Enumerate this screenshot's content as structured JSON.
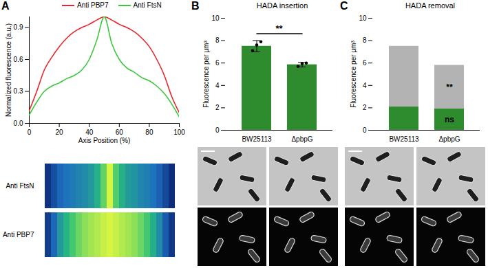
{
  "chart_data": [
    {
      "panel": "A",
      "type": "line",
      "x_label": "Axis Position (%)",
      "y_label": "Normalized fluorescence (a.u.)",
      "x": [
        0,
        5,
        10,
        15,
        20,
        25,
        30,
        35,
        40,
        45,
        50,
        55,
        60,
        65,
        70,
        75,
        80,
        85,
        90,
        95,
        100
      ],
      "series": [
        {
          "name": "Anti PBP7",
          "color": "#e8262b",
          "values": [
            0.12,
            0.3,
            0.5,
            0.62,
            0.72,
            0.8,
            0.86,
            0.9,
            0.93,
            0.97,
            1.0,
            0.97,
            0.93,
            0.9,
            0.86,
            0.8,
            0.72,
            0.6,
            0.45,
            0.25,
            0.1
          ]
        },
        {
          "name": "Anti FtsN",
          "color": "#3cc83c",
          "values": [
            0.08,
            0.2,
            0.3,
            0.35,
            0.38,
            0.42,
            0.45,
            0.5,
            0.6,
            0.78,
            1.0,
            0.75,
            0.6,
            0.52,
            0.48,
            0.43,
            0.4,
            0.35,
            0.28,
            0.18,
            0.06
          ]
        }
      ],
      "xlim": [
        0,
        100
      ],
      "xticks": [
        0,
        20,
        40,
        60,
        80,
        100
      ],
      "ylim": [
        0,
        1
      ],
      "yticks": [
        0,
        0.3,
        0.6,
        0.9
      ],
      "legend": "top",
      "heatmap_rows": [
        "Anti FtsN",
        "Anti PBP7"
      ]
    },
    {
      "panel": "B",
      "type": "bar",
      "title": "HADA insertion",
      "y_label": "Fluorescence per µm³",
      "categories": [
        "BW25113",
        "ΔpbpG"
      ],
      "values": [
        7.5,
        5.85
      ],
      "errors": [
        0.5,
        0.2
      ],
      "points": [
        [
          7.1,
          7.6,
          7.9
        ],
        [
          5.7,
          5.95,
          6.0
        ]
      ],
      "color": "#2e8b2e",
      "ylim": [
        0,
        10
      ],
      "yticks": [
        0,
        2,
        4,
        6,
        8,
        10
      ],
      "annotations": [
        {
          "text": "**"
        }
      ]
    },
    {
      "panel": "C",
      "type": "bar",
      "stacked": true,
      "title": "HADA removal",
      "y_label": "Fluorescence per µm³",
      "categories": [
        "BW25113",
        "ΔpbpG"
      ],
      "series": [
        {
          "color": "#2e8b2e",
          "values": [
            2.1,
            1.9
          ]
        },
        {
          "color": "#b3b3b3",
          "values": [
            5.4,
            3.9
          ]
        }
      ],
      "ylim": [
        0,
        10
      ],
      "yticks": [
        0,
        2,
        4,
        6,
        8,
        10
      ],
      "annotations": [
        {
          "text": "**",
          "category": "ΔpbpG",
          "series": 1
        },
        {
          "text": "ns",
          "category": "ΔpbpG",
          "series": 0
        }
      ]
    }
  ]
}
